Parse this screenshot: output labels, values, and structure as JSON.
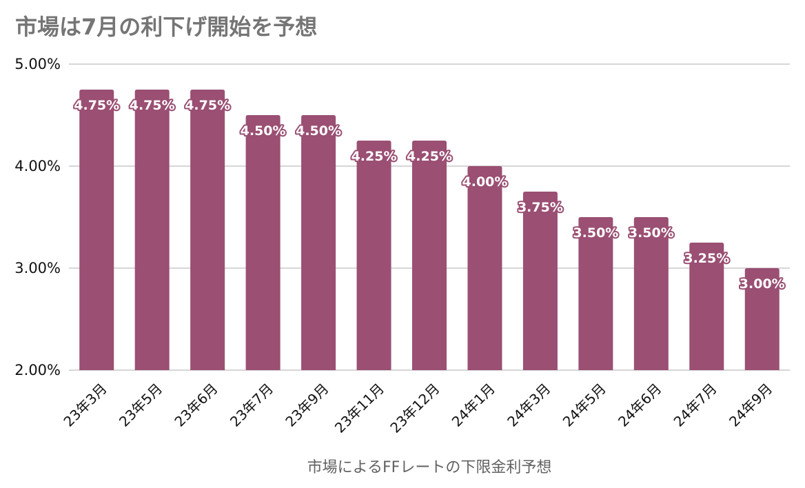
{
  "chart_data": {
    "type": "bar",
    "title": "市場は7月の利下げ開始を予想",
    "xlabel": "市場によるFFレートの下限金利予想",
    "ylabel": "",
    "categories": [
      "23年3月",
      "23年5月",
      "23年6月",
      "23年7月",
      "23年9月",
      "23年11月",
      "23年12月",
      "24年1月",
      "24年3月",
      "24年5月",
      "24年6月",
      "24年7月",
      "24年9月"
    ],
    "values": [
      4.75,
      4.75,
      4.75,
      4.5,
      4.5,
      4.25,
      4.25,
      4.0,
      3.75,
      3.5,
      3.5,
      3.25,
      3.0
    ],
    "data_labels": [
      "4.75%",
      "4.75%",
      "4.75%",
      "4.50%",
      "4.50%",
      "4.25%",
      "4.25%",
      "4.00%",
      "3.75%",
      "3.50%",
      "3.50%",
      "3.25%",
      "3.00%"
    ],
    "ylim": [
      2.0,
      5.0
    ],
    "y_ticks": [
      2.0,
      3.0,
      4.0,
      5.0
    ],
    "y_tick_labels": [
      "2.00%",
      "3.00%",
      "4.00%",
      "5.00%"
    ],
    "grid": true,
    "legend": "none",
    "colors": {
      "bar": "#9a4f73",
      "gridline": "#c8c8c8",
      "title": "#757575",
      "axis_title": "#616161"
    }
  }
}
